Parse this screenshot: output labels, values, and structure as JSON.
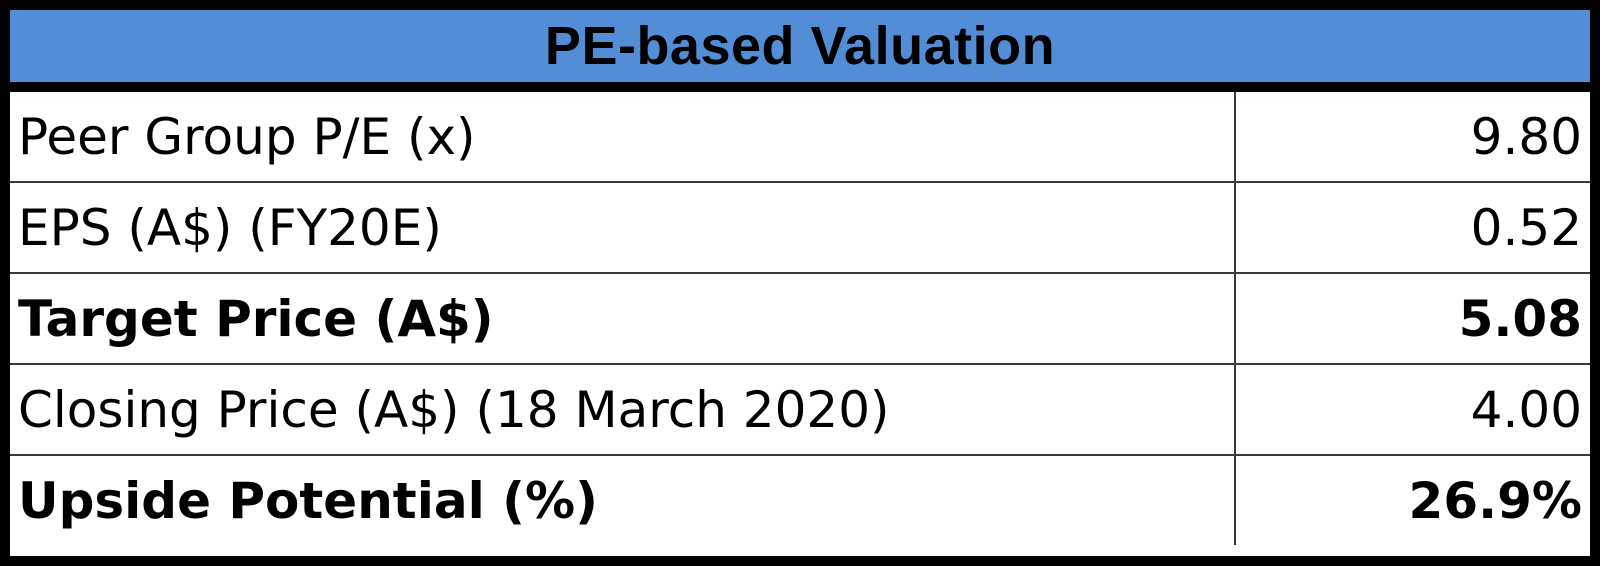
{
  "table": {
    "title": "PE-based Valuation",
    "header_color": "#538dd5",
    "rows": [
      {
        "label": "Peer Group P/E (x)",
        "value": "9.80"
      },
      {
        "label": "EPS (A$) (FY20E)",
        "value": "0.52"
      },
      {
        "label": "Target Price (A$)",
        "value": "5.08"
      },
      {
        "label": "Closing Price (A$) (18 March 2020)",
        "value": "4.00"
      },
      {
        "label": "Upside Potential (%)",
        "value": "26.9%"
      }
    ]
  }
}
